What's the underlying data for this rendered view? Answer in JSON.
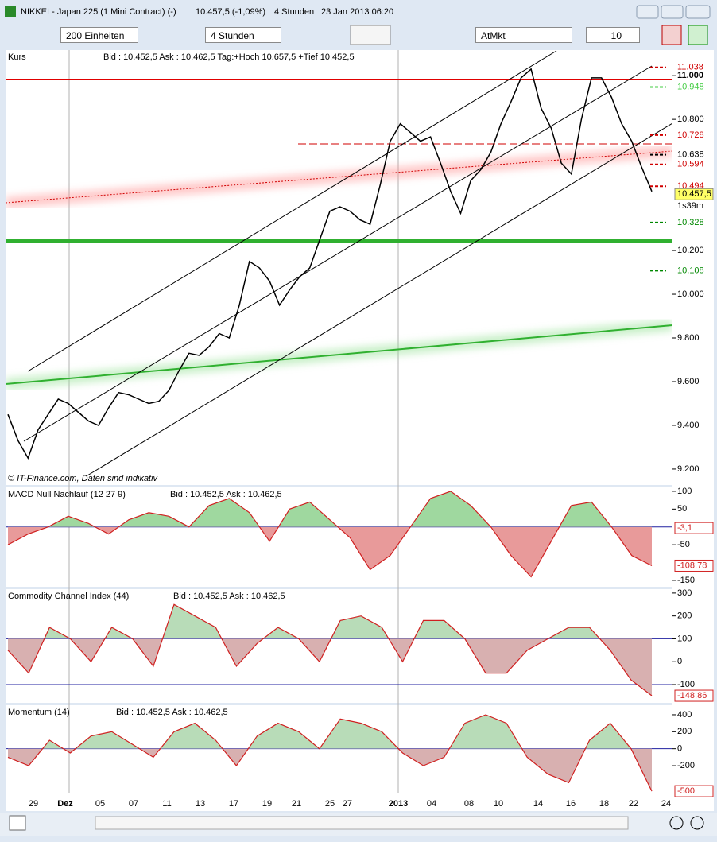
{
  "window": {
    "title": "NIKKEI - Japan 225 (1 Mini Contract) (-)",
    "quote": "10.457,5 (-1,09%)",
    "interval": "4 Stunden",
    "datetime": "23 Jan 2013 06:20"
  },
  "toolbar": {
    "units": "200 Einheiten",
    "period": "4 Stunden",
    "order_type": "AtMkt",
    "quantity": "10"
  },
  "price_panel": {
    "title": "Kurs",
    "info": "Bid : 10.452,5 Ask : 10.462,5 Tag:+Hoch 10.657,5 +Tief 10.452,5",
    "copyright": "© IT-Finance.com, Daten sind indikativ",
    "ylim": [
      9127,
      11117
    ],
    "yticks": [
      {
        "value": 11000,
        "label": "11.000"
      },
      {
        "value": 10800,
        "label": "10.800"
      },
      {
        "value": 10200,
        "label": "10.200"
      },
      {
        "value": 10000,
        "label": "10.000"
      },
      {
        "value": 9800,
        "label": "9.800"
      },
      {
        "value": 9600,
        "label": "9.600"
      },
      {
        "value": 9400,
        "label": "9.400"
      },
      {
        "value": 9200,
        "label": "9.200"
      }
    ],
    "price_labels": [
      {
        "value": 11038,
        "label": "11.038",
        "color": "#d00000"
      },
      {
        "value": 10948,
        "label": "10.948",
        "color": "#44cc44"
      },
      {
        "value": 10728,
        "label": "10.728",
        "color": "#d00000"
      },
      {
        "value": 10638,
        "label": "10.638",
        "color": "#000000"
      },
      {
        "value": 10594,
        "label": "10.594",
        "color": "#d00000"
      },
      {
        "value": 10494,
        "label": "10.494",
        "color": "#d00000"
      },
      {
        "value": 10328,
        "label": "10.328",
        "color": "#008800"
      },
      {
        "value": 10108,
        "label": "10.108",
        "color": "#008800"
      }
    ],
    "last": {
      "value": 10457.5,
      "label": "10.457,5"
    },
    "countdown": "1s39m",
    "closes": [
      9450,
      9330,
      9250,
      9380,
      9450,
      9520,
      9500,
      9460,
      9420,
      9400,
      9480,
      9550,
      9540,
      9520,
      9500,
      9510,
      9560,
      9650,
      9730,
      9720,
      9760,
      9820,
      9800,
      9950,
      10150,
      10120,
      10060,
      9950,
      10020,
      10080,
      10120,
      10250,
      10380,
      10400,
      10380,
      10340,
      10320,
      10500,
      10700,
      10780,
      10740,
      10700,
      10720,
      10600,
      10470,
      10370,
      10520,
      10570,
      10650,
      10780,
      10880,
      10990,
      11030,
      10850,
      10760,
      10600,
      10550,
      10800,
      10990,
      10990,
      10900,
      10780,
      10700,
      10580,
      10470
    ]
  },
  "macd_panel": {
    "title": "MACD Null Nachlauf (12 27 9)",
    "info": "Bid : 10.452,5 Ask : 10.462,5",
    "ylim": [
      -168,
      111
    ],
    "yticks": [
      100,
      50,
      -50,
      -150
    ],
    "last": {
      "value": -3.1,
      "label": "-3,1"
    },
    "signal": {
      "value": -108.78,
      "label": "-108,78"
    },
    "values": [
      -50,
      -20,
      0,
      30,
      10,
      -20,
      20,
      40,
      30,
      0,
      60,
      80,
      40,
      -40,
      50,
      70,
      20,
      -30,
      -120,
      -80,
      0,
      80,
      100,
      60,
      0,
      -80,
      -140,
      -40,
      60,
      70,
      0,
      -80,
      -108.78
    ]
  },
  "cci_panel": {
    "title": "Commodity Channel Index (44)",
    "info": "Bid : 10.452,5 Ask : 10.462,5",
    "ylim": [
      -180,
      317
    ],
    "yticks": [
      300,
      200,
      100,
      0,
      -100
    ],
    "last": {
      "value": -148.86,
      "label": "-148,86"
    },
    "values": [
      50,
      -50,
      150,
      100,
      0,
      150,
      100,
      -20,
      250,
      200,
      150,
      -20,
      80,
      150,
      100,
      0,
      180,
      200,
      150,
      0,
      180,
      180,
      100,
      -50,
      -50,
      50,
      100,
      150,
      150,
      50,
      -80,
      -148.86
    ]
  },
  "momentum_panel": {
    "title": "Momentum (14)",
    "info": "Bid : 10.452,5 Ask : 10.462,5",
    "ylim": [
      -518,
      512
    ],
    "yticks": [
      400,
      200,
      0,
      -200
    ],
    "last": {
      "value": -500,
      "label": "-500"
    },
    "values": [
      -100,
      -200,
      100,
      -50,
      150,
      200,
      50,
      -100,
      200,
      300,
      100,
      -200,
      150,
      300,
      200,
      0,
      350,
      300,
      200,
      -50,
      -200,
      -100,
      300,
      400,
      300,
      -100,
      -300,
      -400,
      100,
      300,
      0,
      -500
    ]
  },
  "x_labels": [
    "29",
    "Dez",
    "05",
    "07",
    "11",
    "13",
    "17",
    "19",
    "21",
    "25",
    "27",
    "2013",
    "04",
    "08",
    "10",
    "14",
    "16",
    "18",
    "22",
    "24"
  ]
}
